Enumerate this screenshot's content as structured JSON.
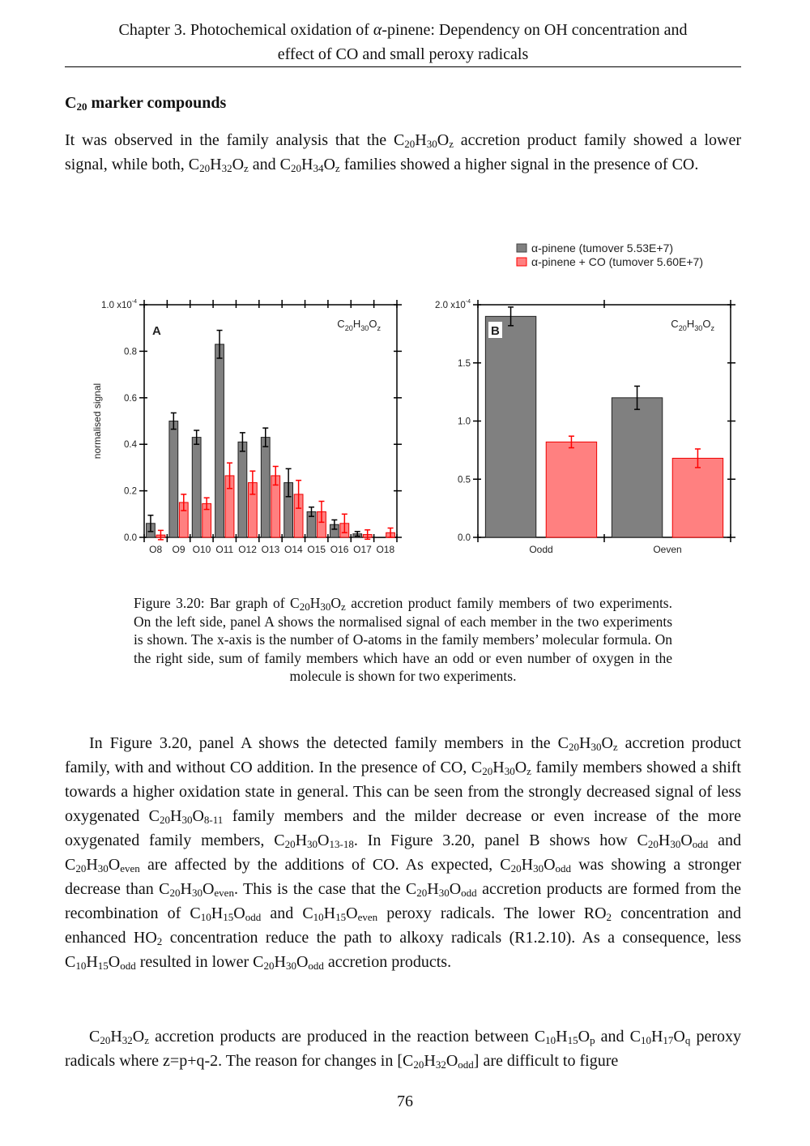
{
  "header": {
    "line1": [
      "Chapter 3.  Photochemical oxidation of ",
      {
        "greek": "α"
      },
      "-pinene: Dependency on OH concentration and"
    ],
    "line2": [
      "effect of CO and small peroxy radicals"
    ]
  },
  "section_title": [
    "C",
    {
      "sub": "20"
    },
    " marker compounds"
  ],
  "paragraphs": {
    "intro": [
      "It was observed in the family analysis that the C",
      {
        "sub": "20"
      },
      "H",
      {
        "sub": "30"
      },
      "O",
      {
        "sub": "z"
      },
      " accretion product family showed a lower signal, while both, C",
      {
        "sub": "20"
      },
      "H",
      {
        "sub": "32"
      },
      "O",
      {
        "sub": "z"
      },
      " and C",
      {
        "sub": "20"
      },
      "H",
      {
        "sub": "34"
      },
      "O",
      {
        "sub": "z"
      },
      " families showed a higher signal in the presence of CO."
    ],
    "body1": [
      "In Figure 3.20, panel A shows the detected family members in the C",
      {
        "sub": "20"
      },
      "H",
      {
        "sub": "30"
      },
      "O",
      {
        "sub": "z"
      },
      " accretion product family, with and without CO addition.  In the presence of CO, C",
      {
        "sub": "20"
      },
      "H",
      {
        "sub": "30"
      },
      "O",
      {
        "sub": "z"
      },
      " family members showed a shift towards a higher oxidation state in general.  This can be seen from the strongly decreased signal of less oxygenated C",
      {
        "sub": "20"
      },
      "H",
      {
        "sub": "30"
      },
      "O",
      {
        "sub": "8-11"
      },
      " family members and the milder decrease or even increase of the more oxygenated family members, C",
      {
        "sub": "20"
      },
      "H",
      {
        "sub": "30"
      },
      "O",
      {
        "sub": "13-18"
      },
      ". In Figure 3.20, panel B shows how C",
      {
        "sub": "20"
      },
      "H",
      {
        "sub": "30"
      },
      "O",
      {
        "sub": "odd"
      },
      " and C",
      {
        "sub": "20"
      },
      "H",
      {
        "sub": "30"
      },
      "O",
      {
        "sub": "even"
      },
      " are affected by the additions of CO. As expected, C",
      {
        "sub": "20"
      },
      "H",
      {
        "sub": "30"
      },
      "O",
      {
        "sub": "odd"
      },
      " was showing a stronger decrease than C",
      {
        "sub": "20"
      },
      "H",
      {
        "sub": "30"
      },
      "O",
      {
        "sub": "even"
      },
      ". This is the case that the C",
      {
        "sub": "20"
      },
      "H",
      {
        "sub": "30"
      },
      "O",
      {
        "sub": "odd"
      },
      " accretion products are formed from the recombination of C",
      {
        "sub": "10"
      },
      "H",
      {
        "sub": "15"
      },
      "O",
      {
        "sub": "odd"
      },
      " and C",
      {
        "sub": "10"
      },
      "H",
      {
        "sub": "15"
      },
      "O",
      {
        "sub": "even"
      },
      " peroxy radicals.  The lower RO",
      {
        "sub": "2"
      },
      " concentration and enhanced HO",
      {
        "sub": "2"
      },
      " concentration reduce the path to alkoxy radicals (R1.2.10). As a consequence, less C",
      {
        "sub": "10"
      },
      "H",
      {
        "sub": "15"
      },
      "O",
      {
        "sub": "odd"
      },
      " resulted in lower C",
      {
        "sub": "20"
      },
      "H",
      {
        "sub": "30"
      },
      "O",
      {
        "sub": "odd"
      },
      " accretion products."
    ],
    "body2": [
      "C",
      {
        "sub": "20"
      },
      "H",
      {
        "sub": "32"
      },
      "O",
      {
        "sub": "z"
      },
      " accretion products are produced in the reaction between C",
      {
        "sub": "10"
      },
      "H",
      {
        "sub": "15"
      },
      "O",
      {
        "sub": "p"
      },
      " and C",
      {
        "sub": "10"
      },
      "H",
      {
        "sub": "17"
      },
      "O",
      {
        "sub": "q"
      },
      " peroxy radicals where z=p+q-2.  The reason for changes in [C",
      {
        "sub": "20"
      },
      "H",
      {
        "sub": "32"
      },
      "O",
      {
        "sub": "odd"
      },
      "] are difficult to figure"
    ]
  },
  "caption": [
    "Figure 3.20: Bar graph of C",
    {
      "sub": "20"
    },
    "H",
    {
      "sub": "30"
    },
    "O",
    {
      "sub": "z"
    },
    " accretion product family members of two experiments. On the left side, panel A shows the normalised signal of each member in the two experiments is shown. The x-axis is the number of O-atoms in the family members’ molecular formula. On the right side, sum of family members which have an odd or even number of oxygen in the molecule is shown for two experiments."
  ],
  "page_number": "76",
  "colors": {
    "series1": "#808080",
    "series2": "#ff8080",
    "series1_err": "#000000",
    "series2_err": "#ff0000"
  },
  "legend": {
    "placement": "top-right",
    "entries": [
      "α-pinene (tumover 5.53E+7)",
      "α-pinene + CO (tumover 5.60E+7)"
    ]
  },
  "chart_data": [
    {
      "type": "bar",
      "panel_label": "A",
      "annotation": "C20H30Oz",
      "ylabel": "normalised signal",
      "y_multiplier": "x10-4",
      "ylim": [
        0,
        1.0
      ],
      "yticks": [
        "0.0",
        "0.2",
        "0.4",
        "0.6",
        "0.8",
        "1.0"
      ],
      "categories": [
        "O8",
        "O9",
        "O10",
        "O11",
        "O12",
        "O13",
        "O14",
        "O15",
        "O16",
        "O17",
        "O18"
      ],
      "series": [
        {
          "name": "α-pinene (tumover 5.53E+7)",
          "values": [
            0.06,
            0.5,
            0.43,
            0.83,
            0.41,
            0.43,
            0.235,
            0.11,
            0.055,
            0.015,
            0.0
          ],
          "errors": [
            0.035,
            0.035,
            0.03,
            0.06,
            0.04,
            0.04,
            0.06,
            0.02,
            0.02,
            0.01,
            0.0
          ]
        },
        {
          "name": "α-pinene + CO (tumover 5.60E+7)",
          "values": [
            0.01,
            0.15,
            0.145,
            0.265,
            0.235,
            0.265,
            0.185,
            0.11,
            0.06,
            0.012,
            0.02
          ],
          "errors": [
            0.02,
            0.035,
            0.025,
            0.055,
            0.05,
            0.04,
            0.06,
            0.045,
            0.04,
            0.02,
            0.02
          ]
        }
      ]
    },
    {
      "type": "bar",
      "panel_label": "B",
      "annotation": "C20H30Oz",
      "y_multiplier": "x10-4",
      "ylim": [
        0,
        2.0
      ],
      "yticks": [
        "0.0",
        "0.5",
        "1.0",
        "1.5",
        "2.0"
      ],
      "categories": [
        "Oodd",
        "Oeven"
      ],
      "series": [
        {
          "name": "α-pinene (tumover 5.53E+7)",
          "values": [
            1.9,
            1.2
          ],
          "errors": [
            0.08,
            0.1
          ]
        },
        {
          "name": "α-pinene + CO (tumover 5.60E+7)",
          "values": [
            0.82,
            0.68
          ],
          "errors": [
            0.05,
            0.08
          ]
        }
      ]
    }
  ]
}
